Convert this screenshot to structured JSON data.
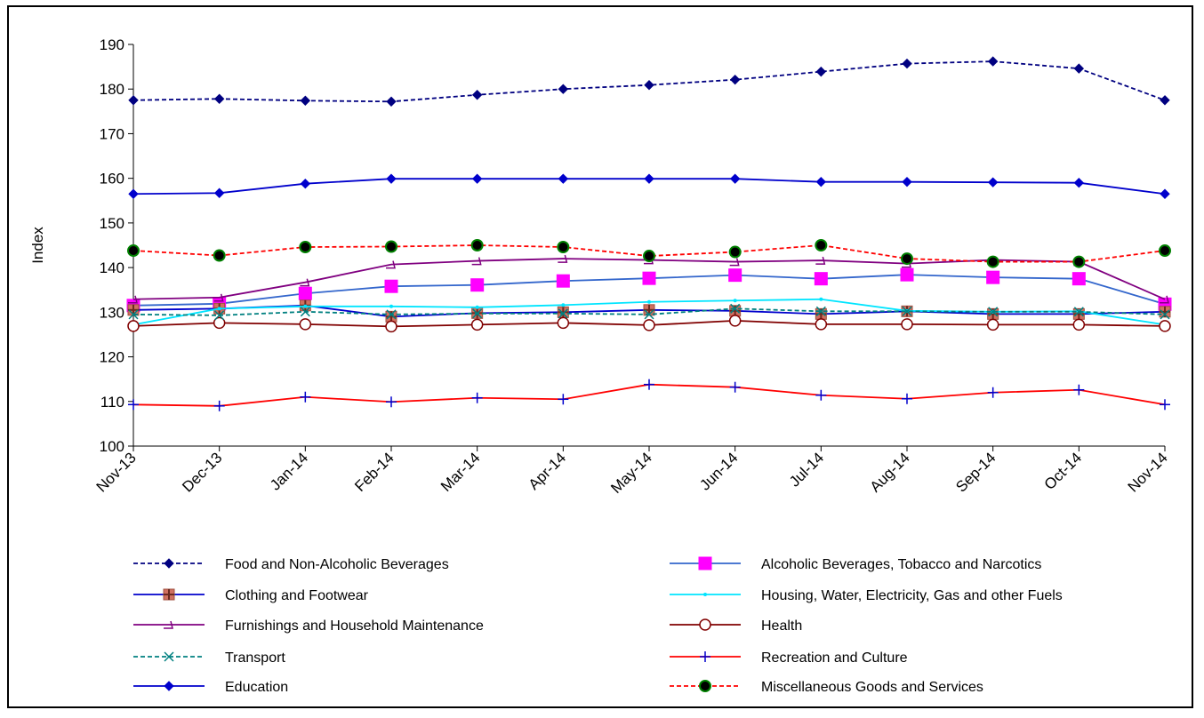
{
  "chart_data": {
    "type": "line",
    "ylabel": "Index",
    "xlabel": "",
    "ylim": [
      100,
      190
    ],
    "yticks": [
      100,
      110,
      120,
      130,
      140,
      150,
      160,
      170,
      180,
      190
    ],
    "categories": [
      "Nov-13",
      "Dec-13",
      "Jan-14",
      "Feb-14",
      "Mar-14",
      "Apr-14",
      "May-14",
      "Jun-14",
      "Jul-14",
      "Aug-14",
      "Sep-14",
      "Oct-14",
      "Nov-14"
    ],
    "legend_position": "bottom",
    "grid": false,
    "series": [
      {
        "name": "Food and Non-Alcoholic Beverages",
        "color": "#000080",
        "dash": "dashed",
        "marker": "diamond",
        "values": [
          177.5,
          177.8,
          177.4,
          177.2,
          178.7,
          180.0,
          180.9,
          182.1,
          183.9,
          185.7,
          186.2,
          184.6,
          177.5
        ]
      },
      {
        "name": "Alcoholic Beverages, Tobacco and Narcotics",
        "color": "#3366CC",
        "dash": "solid",
        "marker": "square-magenta",
        "values": [
          131.5,
          131.9,
          134.2,
          135.8,
          136.1,
          137.0,
          137.6,
          138.3,
          137.5,
          138.4,
          137.8,
          137.5,
          131.8
        ]
      },
      {
        "name": "Clothing and Footwear",
        "color": "#0000CC",
        "dash": "solid",
        "marker": "plus-square",
        "values": [
          130.5,
          130.8,
          131.5,
          129.0,
          129.8,
          130.0,
          130.5,
          130.3,
          129.6,
          130.2,
          129.6,
          129.6,
          130.1
        ]
      },
      {
        "name": "Housing, Water, Electricity, Gas and other Fuels",
        "color": "#00E5FF",
        "dash": "solid",
        "marker": "small-dot",
        "values": [
          127.2,
          130.8,
          131.3,
          131.3,
          131.1,
          131.6,
          132.3,
          132.6,
          132.9,
          130.3,
          130.1,
          130.2,
          127.2
        ]
      },
      {
        "name": "Furnishings and Household Maintenance",
        "color": "#800080",
        "dash": "solid",
        "marker": "hook",
        "values": [
          132.9,
          133.3,
          136.7,
          140.7,
          141.5,
          142.0,
          141.7,
          141.3,
          141.6,
          140.9,
          141.7,
          141.3,
          132.9
        ]
      },
      {
        "name": "Health",
        "color": "#800000",
        "dash": "solid",
        "marker": "circle-open",
        "values": [
          126.9,
          127.6,
          127.3,
          126.8,
          127.2,
          127.6,
          127.1,
          128.1,
          127.3,
          127.3,
          127.2,
          127.2,
          126.9
        ]
      },
      {
        "name": "Transport",
        "color": "#008080",
        "dash": "dashed",
        "marker": "x",
        "values": [
          129.5,
          129.3,
          130.1,
          129.5,
          129.7,
          129.7,
          129.5,
          130.8,
          130.2,
          130.2,
          130.1,
          130.1,
          129.5
        ]
      },
      {
        "name": "Recreation and Culture",
        "color": "#FF0000",
        "dash": "solid",
        "marker": "plus",
        "values": [
          109.3,
          109.0,
          111.0,
          109.9,
          110.8,
          110.5,
          113.8,
          113.2,
          111.4,
          110.6,
          112.0,
          112.6,
          109.3
        ]
      },
      {
        "name": "Education",
        "color": "#0000CC",
        "dash": "solid",
        "marker": "diamond",
        "values": [
          156.5,
          156.7,
          158.8,
          159.9,
          159.9,
          159.9,
          159.9,
          159.9,
          159.2,
          159.2,
          159.1,
          159.0,
          156.5
        ]
      },
      {
        "name": "Miscellaneous Goods and Services",
        "color": "#FF0000",
        "dash": "dashed",
        "marker": "circle-filled",
        "values": [
          143.8,
          142.7,
          144.6,
          144.7,
          145.0,
          144.6,
          142.6,
          143.5,
          145.0,
          142.0,
          141.3,
          141.3,
          143.8
        ]
      }
    ]
  }
}
